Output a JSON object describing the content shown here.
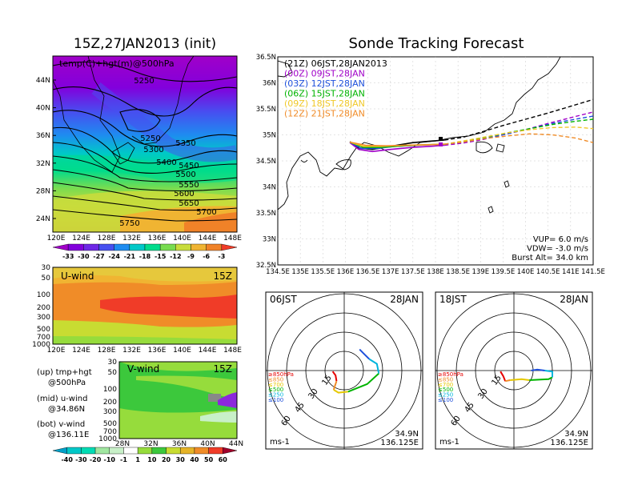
{
  "left": {
    "title": "15Z,27JAN2013 (init)",
    "map_label": "temp(C)+hgt(m)@500hPa",
    "lat_ticks": [
      "44N",
      "40N",
      "36N",
      "32N",
      "28N",
      "24N"
    ],
    "lon_ticks": [
      "120E",
      "124E",
      "128E",
      "132E",
      "136E",
      "140E",
      "144E",
      "148E"
    ],
    "contour_labels": [
      "5250",
      "5250",
      "5300",
      "5350",
      "5400",
      "5450",
      "5500",
      "5550",
      "5600",
      "5650",
      "5700",
      "5750"
    ],
    "temp_colorbar": [
      "-33",
      "-30",
      "-27",
      "-24",
      "-21",
      "-18",
      "-15",
      "-12",
      "-9",
      "-6",
      "-3"
    ],
    "temp_colors": [
      "#a000c8",
      "#8200dc",
      "#6e28e6",
      "#4650f0",
      "#1e8cf0",
      "#00c8c8",
      "#00dc8c",
      "#78dc50",
      "#c8dc3c",
      "#f0b432",
      "#f08228",
      "#f03c28"
    ],
    "uwind": {
      "label": "U-wind",
      "time": "15Z",
      "p_ticks": [
        "30",
        "50",
        "100",
        "200",
        "300",
        "500",
        "700",
        "1000"
      ],
      "lon_ticks": [
        "120E",
        "124E",
        "128E",
        "132E",
        "136E",
        "140E",
        "144E",
        "148E"
      ]
    },
    "vwind": {
      "label": "V-wind",
      "time": "15Z",
      "p_ticks": [
        "30",
        "50",
        "100",
        "200",
        "300",
        "500",
        "700",
        "1000"
      ],
      "lat_ticks": [
        "28N",
        "32N",
        "36N",
        "40N",
        "44N"
      ]
    },
    "notes": [
      {
        "line1": "(up) tmp+hgt",
        "line2": "@500hPa"
      },
      {
        "line1": "(mid) u-wind",
        "line2": "@34.86N"
      },
      {
        "line1": "(bot) v-wind",
        "line2": "@136.11E"
      }
    ],
    "wind_colorbar": [
      "-40",
      "-30",
      "-20",
      "-10",
      "-1",
      "1",
      "10",
      "20",
      "30",
      "40",
      "50",
      "60"
    ],
    "wind_colors": [
      "#00a0c8",
      "#00c8c8",
      "#00dcb4",
      "#a0e6a0",
      "#c8f0c8",
      "#ffffff",
      "#96dc3c",
      "#3cc83c",
      "#c8dc32",
      "#e6b428",
      "#f08c28",
      "#f03c28",
      "#a0002a"
    ]
  },
  "tracking": {
    "title": "Sonde Tracking Forecast",
    "legend": [
      {
        "text": "(21Z)  06JST,28JAN2013",
        "color": "#000000"
      },
      {
        "text": "(00Z)  09JST,28JAN",
        "color": "#a000c8"
      },
      {
        "text": "(03Z)  12JST,28JAN",
        "color": "#1e50dc"
      },
      {
        "text": "(06Z)  15JST,28JAN",
        "color": "#00b400"
      },
      {
        "text": "(09Z)  18JST,28JAN",
        "color": "#f0c828"
      },
      {
        "text": "(12Z)  21JST,28JAN",
        "color": "#f08c28"
      }
    ],
    "lat_ticks": [
      "36.5N",
      "36N",
      "35.5N",
      "35N",
      "34.5N",
      "34N",
      "33.5N",
      "33N",
      "32.5N"
    ],
    "lon_ticks": [
      "134.5E",
      "135E",
      "135.5E",
      "136E",
      "136.5E",
      "137E",
      "137.5E",
      "138E",
      "138.5E",
      "139E",
      "139.5E",
      "140E",
      "140.5E",
      "141E",
      "141.5E"
    ],
    "params": [
      "VUP=  6.0  m/s",
      "VDW= -3.0  m/s",
      "Burst Alt=  34.0  km"
    ],
    "chart_data": {
      "type": "line",
      "xlim": [
        134.5,
        141.5
      ],
      "ylim": [
        32.5,
        36.5
      ],
      "series": [
        {
          "color": "#000000",
          "points": [
            [
              136.1,
              34.87
            ],
            [
              136.3,
              34.75
            ],
            [
              136.6,
              34.72
            ],
            [
              137.0,
              34.78
            ],
            [
              137.5,
              34.85
            ],
            [
              137.9,
              34.88
            ],
            [
              138.2,
              34.9
            ]
          ],
          "ext": [
            [
              138.6,
              34.95
            ],
            [
              139.0,
              35.05
            ],
            [
              139.5,
              35.18
            ],
            [
              140.0,
              35.3
            ],
            [
              140.5,
              35.42
            ],
            [
              141.0,
              35.55
            ],
            [
              141.5,
              35.68
            ]
          ]
        },
        {
          "color": "#a000c8",
          "points": [
            [
              136.1,
              34.85
            ],
            [
              136.3,
              34.72
            ],
            [
              136.6,
              34.68
            ],
            [
              137.0,
              34.72
            ],
            [
              137.5,
              34.76
            ],
            [
              137.9,
              34.78
            ],
            [
              138.2,
              34.8
            ]
          ],
          "ext": [
            [
              138.6,
              34.84
            ],
            [
              139.0,
              34.9
            ],
            [
              139.5,
              35.0
            ],
            [
              140.0,
              35.1
            ],
            [
              140.5,
              35.22
            ],
            [
              141.0,
              35.33
            ],
            [
              141.5,
              35.44
            ]
          ]
        },
        {
          "color": "#1e50dc",
          "points": [
            [
              136.1,
              34.86
            ],
            [
              136.35,
              34.74
            ],
            [
              136.7,
              34.74
            ],
            [
              137.1,
              34.78
            ],
            [
              137.6,
              34.8
            ],
            [
              138.2,
              34.82
            ]
          ],
          "ext": [
            [
              138.6,
              34.86
            ],
            [
              139.1,
              34.93
            ],
            [
              139.6,
              35.02
            ],
            [
              140.1,
              35.12
            ],
            [
              140.6,
              35.22
            ],
            [
              141.1,
              35.3
            ],
            [
              141.5,
              35.36
            ]
          ]
        },
        {
          "color": "#00b400",
          "points": [
            [
              136.1,
              34.86
            ],
            [
              136.4,
              34.76
            ],
            [
              136.8,
              34.76
            ],
            [
              137.3,
              34.79
            ],
            [
              137.8,
              34.81
            ],
            [
              138.2,
              34.82
            ]
          ],
          "ext": [
            [
              138.6,
              34.87
            ],
            [
              139.1,
              34.95
            ],
            [
              139.6,
              35.04
            ],
            [
              140.1,
              35.12
            ],
            [
              140.6,
              35.2
            ],
            [
              141.1,
              35.26
            ],
            [
              141.5,
              35.3
            ]
          ]
        },
        {
          "color": "#f0c828",
          "points": [
            [
              136.1,
              34.86
            ],
            [
              136.4,
              34.78
            ],
            [
              136.8,
              34.78
            ],
            [
              137.3,
              34.8
            ],
            [
              137.8,
              34.81
            ],
            [
              138.2,
              34.82
            ]
          ],
          "ext": [
            [
              138.6,
              34.88
            ],
            [
              139.1,
              34.96
            ],
            [
              139.6,
              35.04
            ],
            [
              140.1,
              35.1
            ],
            [
              140.6,
              35.14
            ],
            [
              141.1,
              35.15
            ],
            [
              141.5,
              35.12
            ]
          ]
        },
        {
          "color": "#f08c28",
          "points": [
            [
              136.1,
              34.86
            ],
            [
              136.45,
              34.8
            ],
            [
              136.9,
              34.79
            ],
            [
              137.4,
              34.8
            ],
            [
              137.9,
              34.81
            ],
            [
              138.2,
              34.82
            ]
          ],
          "ext": [
            [
              138.6,
              34.86
            ],
            [
              139.1,
              34.93
            ],
            [
              139.6,
              34.98
            ],
            [
              140.1,
              35.02
            ],
            [
              140.6,
              35.0
            ],
            [
              141.1,
              34.94
            ],
            [
              141.5,
              34.85
            ]
          ]
        }
      ]
    }
  },
  "hodo": [
    {
      "time": "06JST",
      "date": "28JAN",
      "rings": [
        "15",
        "30",
        "45",
        "60"
      ],
      "unit": "ms-1",
      "lat": "34.9N",
      "lon": "136.125E",
      "plevels": [
        {
          "t": "≥850hPa",
          "c": "#e60000"
        },
        {
          "t": "≤850",
          "c": "#f08c28"
        },
        {
          "t": "≤700",
          "c": "#e6c800"
        },
        {
          "t": "≤500",
          "c": "#00b400"
        },
        {
          "t": "≤250",
          "c": "#00b4dc"
        },
        {
          "t": "≤100",
          "c": "#1e50dc"
        }
      ],
      "trace": [
        [
          [
            -0.6,
            -0.05
          ],
          [
            -0.45,
            -0.25
          ],
          [
            -0.4,
            -0.55
          ]
        ],
        [
          [
            -0.4,
            -0.55
          ],
          [
            -0.55,
            -1.0
          ]
        ],
        [
          [
            -0.55,
            -1.0
          ],
          [
            -0.3,
            -1.15
          ],
          [
            0.2,
            -1.1
          ]
        ],
        [
          [
            0.2,
            -1.1
          ],
          [
            1.2,
            -0.7
          ],
          [
            1.8,
            -0.15
          ]
        ],
        [
          [
            1.8,
            -0.15
          ],
          [
            1.7,
            0.35
          ],
          [
            1.3,
            0.6
          ]
        ],
        [
          [
            1.3,
            0.6
          ],
          [
            1.0,
            0.9
          ],
          [
            0.8,
            1.1
          ]
        ]
      ]
    },
    {
      "time": "18JST",
      "date": "28JAN",
      "rings": [
        "15",
        "30",
        "45",
        "60"
      ],
      "unit": "ms-1",
      "lat": "34.9N",
      "lon": "136.125E",
      "plevels": [
        {
          "t": "≥850hPa",
          "c": "#e60000"
        },
        {
          "t": "≤850",
          "c": "#f08c28"
        },
        {
          "t": "≤700",
          "c": "#e6c800"
        },
        {
          "t": "≤500",
          "c": "#00b400"
        },
        {
          "t": "≤250",
          "c": "#00b4dc"
        },
        {
          "t": "≤100",
          "c": "#1e50dc"
        }
      ],
      "trace": [
        [
          [
            -0.7,
            -0.05
          ],
          [
            -0.55,
            -0.3
          ],
          [
            -0.45,
            -0.55
          ]
        ],
        [
          [
            -0.45,
            -0.55
          ],
          [
            -0.2,
            -0.5
          ]
        ],
        [
          [
            -0.2,
            -0.5
          ],
          [
            0.4,
            -0.45
          ],
          [
            0.8,
            -0.5
          ]
        ],
        [
          [
            0.8,
            -0.5
          ],
          [
            1.8,
            -0.45
          ],
          [
            2.0,
            -0.35
          ]
        ],
        [
          [
            2.0,
            -0.35
          ],
          [
            2.0,
            -0.05
          ],
          [
            1.6,
            0.0
          ]
        ],
        [
          [
            1.6,
            0.0
          ],
          [
            1.2,
            0.05
          ],
          [
            0.9,
            0.0
          ]
        ]
      ]
    }
  ]
}
